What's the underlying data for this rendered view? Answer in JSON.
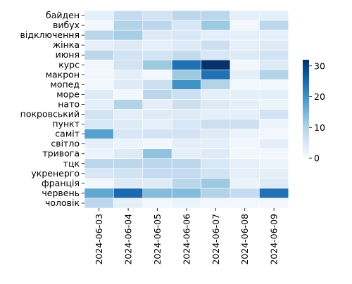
{
  "chart_data": {
    "type": "heatmap",
    "title": "",
    "xlabel": "",
    "ylabel": "",
    "x": [
      "2024-06-03",
      "2024-06-04",
      "2024-06-05",
      "2024-06-06",
      "2024-06-07",
      "2024-06-08",
      "2024-06-09"
    ],
    "y": [
      "байден",
      "вибух",
      "відключення",
      "жінка",
      "июня",
      "курс",
      "макрон",
      "мопед",
      "море",
      "нато",
      "покровський",
      "пункт",
      "саміт",
      "світло",
      "тривога",
      "тцк",
      "укренерго",
      "франція",
      "червень",
      "чоловік"
    ],
    "values": [
      [
        3,
        8,
        6,
        9,
        9,
        3,
        3
      ],
      [
        1,
        10,
        9,
        5,
        12,
        1,
        9
      ],
      [
        9,
        11,
        4,
        5,
        3,
        3,
        3
      ],
      [
        3,
        4,
        3,
        4,
        7,
        3,
        4
      ],
      [
        9,
        6,
        6,
        8,
        5,
        4,
        6
      ],
      [
        1,
        6,
        12,
        24,
        32,
        1,
        4
      ],
      [
        1,
        3,
        1,
        12,
        24,
        3,
        10
      ],
      [
        1,
        4,
        7,
        20,
        10,
        1,
        1
      ],
      [
        4,
        1,
        9,
        7,
        3,
        3,
        3
      ],
      [
        3,
        10,
        3,
        7,
        4,
        3,
        2
      ],
      [
        6,
        3,
        4,
        4,
        3,
        3,
        6
      ],
      [
        5,
        4,
        3,
        5,
        7,
        7,
        2
      ],
      [
        18,
        5,
        6,
        6,
        4,
        2,
        1
      ],
      [
        3,
        2,
        1,
        3,
        3,
        1,
        3
      ],
      [
        2,
        4,
        13,
        3,
        4,
        1,
        1
      ],
      [
        9,
        9,
        9,
        9,
        5,
        3,
        2
      ],
      [
        5,
        6,
        8,
        8,
        6,
        3,
        3
      ],
      [
        1,
        4,
        4,
        9,
        12,
        2,
        4
      ],
      [
        17,
        25,
        14,
        14,
        10,
        8,
        24
      ],
      [
        9,
        3,
        1,
        2,
        1,
        1,
        1
      ]
    ],
    "colorbar": {
      "min": 0,
      "max": 32,
      "ticks": [
        0,
        10,
        20,
        30
      ]
    },
    "colormap": [
      "#f7fbff",
      "#deebf7",
      "#c6dbef",
      "#9ecae1",
      "#6baed6",
      "#4292c6",
      "#2171b5",
      "#08519c",
      "#08306b"
    ],
    "cell_border_color": "#ffffff",
    "grid": false,
    "legend": "colorbar-right"
  }
}
